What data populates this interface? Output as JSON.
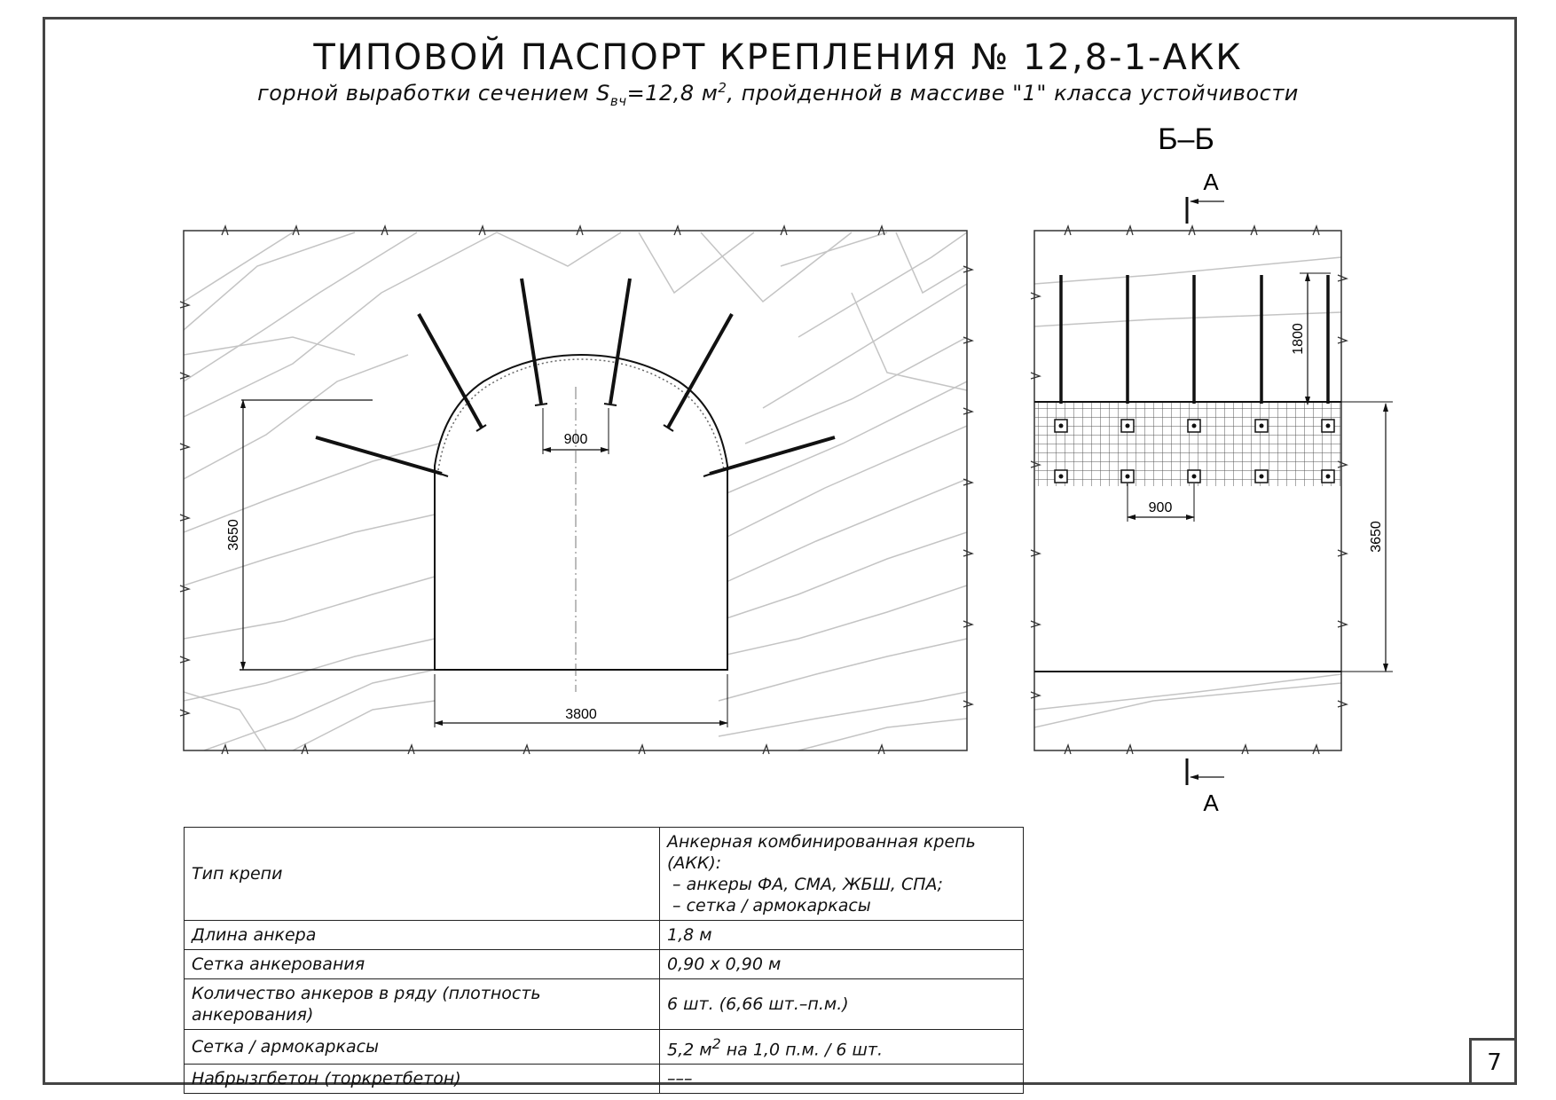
{
  "header": {
    "title": "ТИПОВОЙ ПАСПОРТ КРЕПЛЕНИЯ № 12,8-1-АКК",
    "subtitle_before": "горной выработки сечением S",
    "subtitle_sub": "вч",
    "subtitle_mid": "=12,8 м",
    "subtitle_sup": "2",
    "subtitle_after": ", пройденной в массиве \"1\" класса устойчивости"
  },
  "cross_section": {
    "width_dim": "3800",
    "height_dim": "3650",
    "bolt_spacing_dim": "900"
  },
  "side_view": {
    "section_label": "Б–Б",
    "cut_label_top": "А",
    "cut_label_bottom": "А",
    "bolt_length_dim": "1800",
    "bolt_spacing_dim": "900",
    "height_dim": "3650"
  },
  "spec_table": {
    "rows": [
      {
        "key": "Тип крепи",
        "lines": [
          "Анкерная комбинированная крепь (АКК):",
          " – анкеры ФА, СМА, ЖБШ, СПА;",
          " – сетка / армокаркасы"
        ]
      },
      {
        "key": "Длина анкера",
        "value": "1,8 м"
      },
      {
        "key": "Сетка анкерования",
        "value": "0,90 х 0,90 м"
      },
      {
        "key": "Количество анкеров в ряду (плотность анкерования)",
        "value": "6 шт. (6,66 шт.–п.м.)"
      },
      {
        "key": "Сетка / армокаркасы",
        "value_before": "5,2 м",
        "value_sup": "2",
        "value_after": " на 1,0 п.м. / 6 шт."
      },
      {
        "key": "Набрызгбетон (торкретбетон)",
        "value": "–––"
      }
    ]
  },
  "page_number": "7"
}
